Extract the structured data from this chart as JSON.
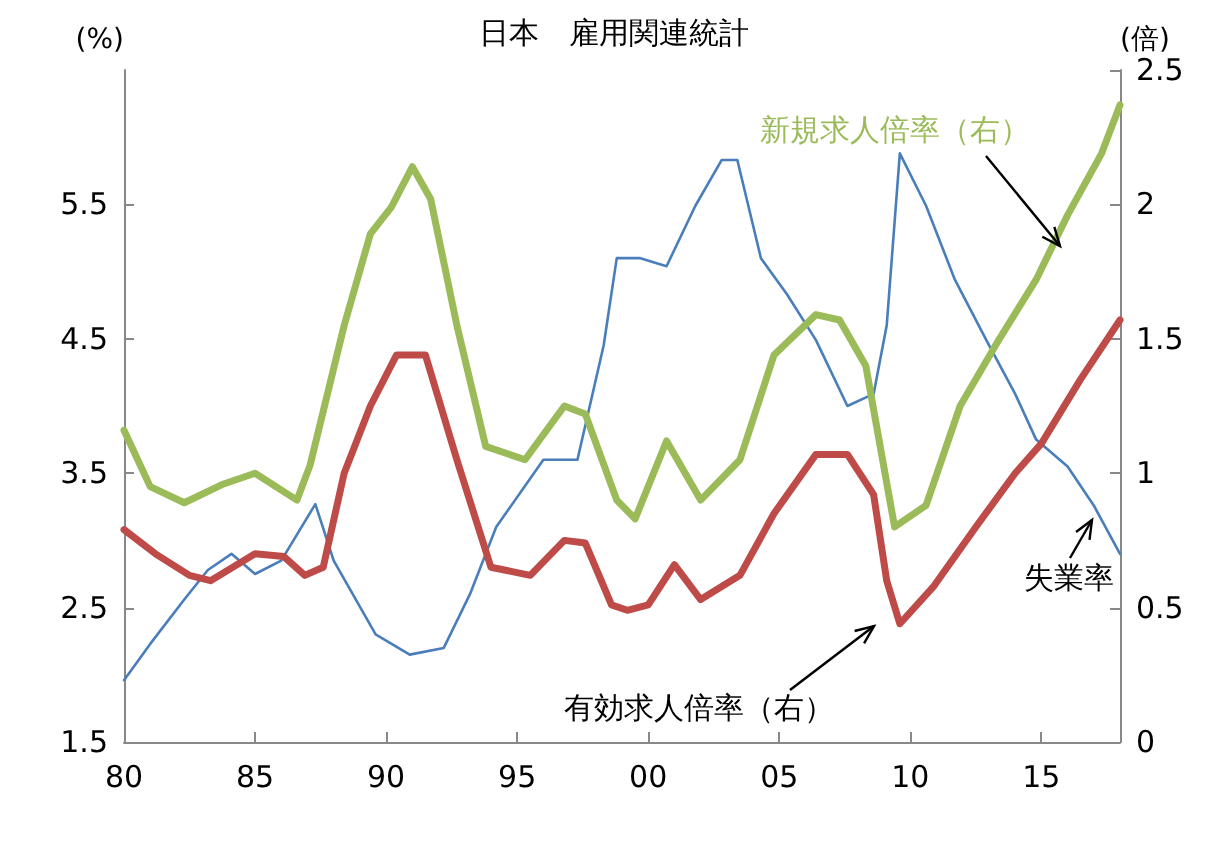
{
  "chart_data": {
    "type": "line",
    "title": "日本　雇用関連統計",
    "ylabel": "(%)",
    "y2label": "(倍)",
    "xlim": [
      1980,
      2018
    ],
    "xticks": [
      {
        "value": 1980,
        "label": "80"
      },
      {
        "value": 1985,
        "label": "85"
      },
      {
        "value": 1990,
        "label": "90"
      },
      {
        "value": 1995,
        "label": "95"
      },
      {
        "value": 2000,
        "label": "00"
      },
      {
        "value": 2005,
        "label": "05"
      },
      {
        "value": 2010,
        "label": "10"
      },
      {
        "value": 2015,
        "label": "15"
      }
    ],
    "ylim": [
      1.5,
      6.5
    ],
    "yticks": [
      1.5,
      2.5,
      3.5,
      4.5,
      5.5
    ],
    "y2lim": [
      0,
      2.5
    ],
    "y2ticks": [
      0,
      0.5,
      1,
      1.5,
      2,
      2.5
    ],
    "legend": false,
    "grid": false,
    "marker": "none",
    "line_style": "solid",
    "series": [
      {
        "name": "失業率",
        "color": "#4a7ebb",
        "axis": "y",
        "x": [
          1980,
          1981,
          1982.3,
          1983.2,
          1984.1,
          1985,
          1986,
          1987.3,
          1988,
          1989.6,
          1990.9,
          1992.2,
          1993.2,
          1994.2,
          1996,
          1997.3,
          1998.3,
          1998.8,
          1999.7,
          2000.7,
          2001.8,
          2002.8,
          2003.4,
          2004.3,
          2005.3,
          2006.4,
          2007.6,
          2008.6,
          2009.1,
          2009.6,
          2010.6,
          2011.7,
          2012.9,
          2014,
          2014.8,
          2016,
          2017,
          2018
        ],
        "values": [
          1.96,
          2.23,
          2.56,
          2.78,
          2.9,
          2.75,
          2.85,
          3.27,
          2.85,
          2.3,
          2.15,
          2.2,
          2.6,
          3.1,
          3.6,
          3.6,
          4.45,
          5.1,
          5.1,
          5.04,
          5.49,
          5.83,
          5.83,
          5.1,
          4.83,
          4.49,
          4.0,
          4.09,
          4.6,
          5.88,
          5.49,
          4.94,
          4.49,
          4.09,
          3.75,
          3.55,
          3.26,
          2.9
        ]
      },
      {
        "name": "有効求人倍率（右）",
        "color": "#be4b48",
        "axis": "y2",
        "x": [
          1980,
          1981.2,
          1982.5,
          1983.3,
          1985,
          1986.1,
          1986.9,
          1987.6,
          1988.4,
          1989.4,
          1990.4,
          1991.5,
          1992.7,
          1994,
          1995.5,
          1996.8,
          1997.6,
          1998.6,
          1999.2,
          2000,
          2001,
          2002,
          2003.5,
          2004.8,
          2006.4,
          2007.6,
          2008.6,
          2009.1,
          2009.6,
          2010.9,
          2012.5,
          2014,
          2015,
          2016.5,
          2018
        ],
        "values": [
          0.79,
          0.7,
          0.62,
          0.6,
          0.7,
          0.69,
          0.62,
          0.65,
          1.0,
          1.25,
          1.44,
          1.44,
          1.05,
          0.65,
          0.62,
          0.75,
          0.74,
          0.51,
          0.49,
          0.51,
          0.66,
          0.53,
          0.62,
          0.85,
          1.07,
          1.07,
          0.92,
          0.6,
          0.44,
          0.58,
          0.8,
          1.0,
          1.11,
          1.35,
          1.57
        ]
      },
      {
        "name": "新規求人倍率（右）",
        "color": "#9bbb59",
        "axis": "y2",
        "x": [
          1980,
          1981,
          1982.3,
          1983.8,
          1985,
          1986.6,
          1987.1,
          1988.4,
          1989.4,
          1990.2,
          1991,
          1991.7,
          1992.7,
          1993.8,
          1995.3,
          1996.8,
          1997.6,
          1998.8,
          1999.5,
          2000.7,
          2002,
          2003.5,
          2004.8,
          2006.4,
          2007.3,
          2008.3,
          2009.4,
          2010.6,
          2011.9,
          2013.4,
          2014.8,
          2016,
          2017.3,
          2018
        ],
        "values": [
          1.16,
          0.95,
          0.89,
          0.96,
          1.0,
          0.9,
          1.03,
          1.55,
          1.89,
          1.99,
          2.14,
          2.02,
          1.55,
          1.1,
          1.05,
          1.25,
          1.22,
          0.9,
          0.83,
          1.12,
          0.9,
          1.05,
          1.44,
          1.59,
          1.57,
          1.4,
          0.8,
          0.88,
          1.25,
          1.5,
          1.72,
          1.96,
          2.19,
          2.37
        ]
      }
    ]
  }
}
